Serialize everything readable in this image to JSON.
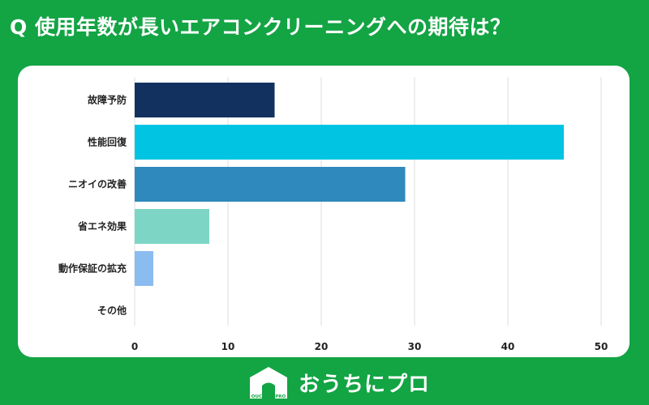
{
  "title": "Q 使用年数が長いエアコンクリーニングへの期待は？",
  "brand": {
    "logo_icon": "house-logo-icon",
    "logo_text": "OUCHI ni PRO",
    "name": "おうちにプロ"
  },
  "colors": {
    "background": "#13a444",
    "card": "#ffffff",
    "grid": "#dcdcdc"
  },
  "chart_data": {
    "type": "bar",
    "orientation": "horizontal",
    "title": "Q 使用年数が長いエアコンクリーニングへの期待は？",
    "xlabel": "",
    "ylabel": "",
    "xlim": [
      0,
      50
    ],
    "xticks": [
      0,
      10,
      20,
      30,
      40,
      50
    ],
    "grid": true,
    "categories": [
      "故障予防",
      "性能回復",
      "ニオイの改善",
      "省エネ効果",
      "動作保証の拡充",
      "その他"
    ],
    "values": [
      15,
      46,
      29,
      8,
      2,
      0
    ],
    "bar_colors": [
      "#12315f",
      "#00c4e2",
      "#2f89bd",
      "#7dd6c5",
      "#8bbcf0",
      "#cccccc"
    ]
  }
}
